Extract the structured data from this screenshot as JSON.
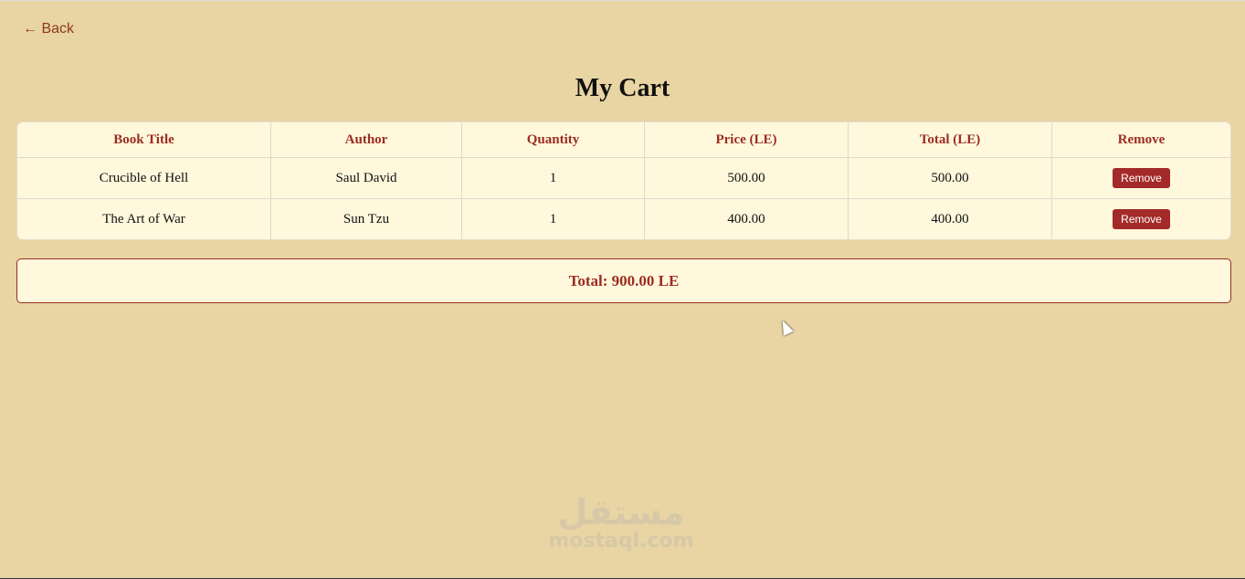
{
  "nav": {
    "back_label": "← Back"
  },
  "page": {
    "title": "My Cart"
  },
  "table": {
    "headers": [
      "Book Title",
      "Author",
      "Quantity",
      "Price (LE)",
      "Total (LE)",
      "Remove"
    ],
    "rows": [
      {
        "title": "Crucible of Hell",
        "author": "Saul David",
        "quantity": "1",
        "price": "500.00",
        "total": "500.00",
        "remove_label": "Remove"
      },
      {
        "title": "The Art of War",
        "author": "Sun Tzu",
        "quantity": "1",
        "price": "400.00",
        "total": "400.00",
        "remove_label": "Remove"
      }
    ]
  },
  "summary": {
    "total_label": "Total: 900.00 LE"
  },
  "watermark": {
    "arabic": "مستقل",
    "latin": "mostaql.com"
  },
  "colors": {
    "background": "#e9d4a4",
    "accent": "#9b2d22",
    "card": "#fff8dc",
    "button": "#a32a28"
  }
}
